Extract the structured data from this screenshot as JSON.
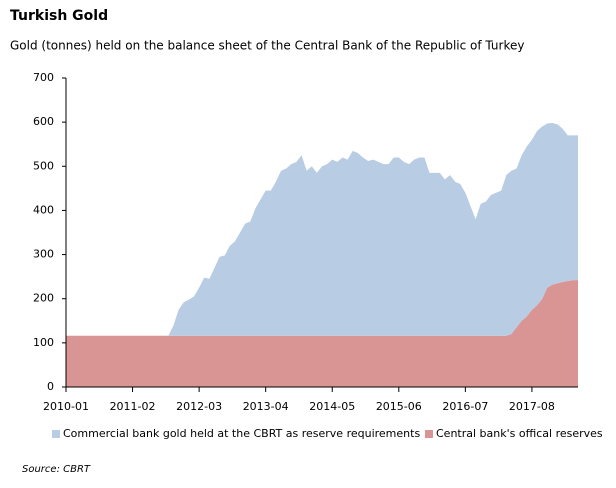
{
  "chart_data": {
    "type": "stacked_area",
    "title": "Turkish Gold",
    "subtitle": "Gold (tonnes) held on the balance sheet of the Central Bank of the Republic of Turkey",
    "source": "Source: CBRT",
    "categories": [
      "2010-01",
      null,
      null,
      null,
      null,
      null,
      null,
      null,
      null,
      null,
      null,
      null,
      null,
      "2011-02",
      null,
      null,
      null,
      null,
      null,
      null,
      null,
      null,
      null,
      null,
      null,
      null,
      "2012-03",
      null,
      null,
      null,
      null,
      null,
      null,
      null,
      null,
      null,
      null,
      null,
      null,
      "2013-04",
      null,
      null,
      null,
      null,
      null,
      null,
      null,
      null,
      null,
      null,
      null,
      null,
      "2014-05",
      null,
      null,
      null,
      null,
      null,
      null,
      null,
      null,
      null,
      null,
      null,
      null,
      "2015-06",
      null,
      null,
      null,
      null,
      null,
      null,
      null,
      null,
      null,
      null,
      null,
      null,
      "2016-07",
      null,
      null,
      null,
      null,
      null,
      null,
      null,
      null,
      null,
      null,
      null,
      null,
      "2017-08",
      null,
      null,
      null,
      null,
      null,
      null,
      null,
      null,
      null
    ],
    "series": [
      {
        "name": "Commercial bank gold held at the CBRT as reserve requirements",
        "color": "#b8cce4",
        "values": [
          0,
          0,
          0,
          0,
          0,
          0,
          0,
          0,
          0,
          0,
          0,
          0,
          0,
          0,
          0,
          0,
          0,
          0,
          0,
          0,
          0,
          24,
          59,
          76,
          82,
          89,
          109,
          132,
          129,
          154,
          179,
          182,
          204,
          214,
          234,
          254,
          259,
          289,
          309,
          329,
          329,
          349,
          374,
          379,
          389,
          394,
          409,
          374,
          384,
          369,
          384,
          389,
          399,
          394,
          404,
          399,
          419,
          414,
          404,
          396,
          399,
          394,
          389,
          389,
          404,
          404,
          394,
          389,
          399,
          404,
          404,
          369,
          369,
          369,
          354,
          364,
          349,
          344,
          324,
          294,
          264,
          299,
          304,
          319,
          324,
          329,
          364,
          370,
          360,
          375,
          385,
          385,
          395,
          390,
          372,
          366,
          360,
          347,
          330,
          328,
          328
        ]
      },
      {
        "name": "Central bank's offical reserves",
        "color": "#d99594",
        "values": [
          116,
          116,
          116,
          116,
          116,
          116,
          116,
          116,
          116,
          116,
          116,
          116,
          116,
          116,
          116,
          116,
          116,
          116,
          116,
          116,
          116,
          116,
          116,
          116,
          116,
          116,
          116,
          116,
          116,
          116,
          116,
          116,
          116,
          116,
          116,
          116,
          116,
          116,
          116,
          116,
          116,
          116,
          116,
          116,
          116,
          116,
          116,
          116,
          116,
          116,
          116,
          116,
          116,
          116,
          116,
          116,
          116,
          116,
          116,
          116,
          116,
          116,
          116,
          116,
          116,
          116,
          116,
          116,
          116,
          116,
          116,
          116,
          116,
          116,
          116,
          116,
          116,
          116,
          116,
          116,
          116,
          116,
          116,
          116,
          116,
          116,
          116,
          120,
          135,
          150,
          160,
          175,
          185,
          200,
          225,
          232,
          235,
          238,
          240,
          242,
          242
        ]
      }
    ],
    "ylim": [
      0,
      700
    ],
    "yticks": [
      0,
      100,
      200,
      300,
      400,
      500,
      600,
      700
    ]
  }
}
